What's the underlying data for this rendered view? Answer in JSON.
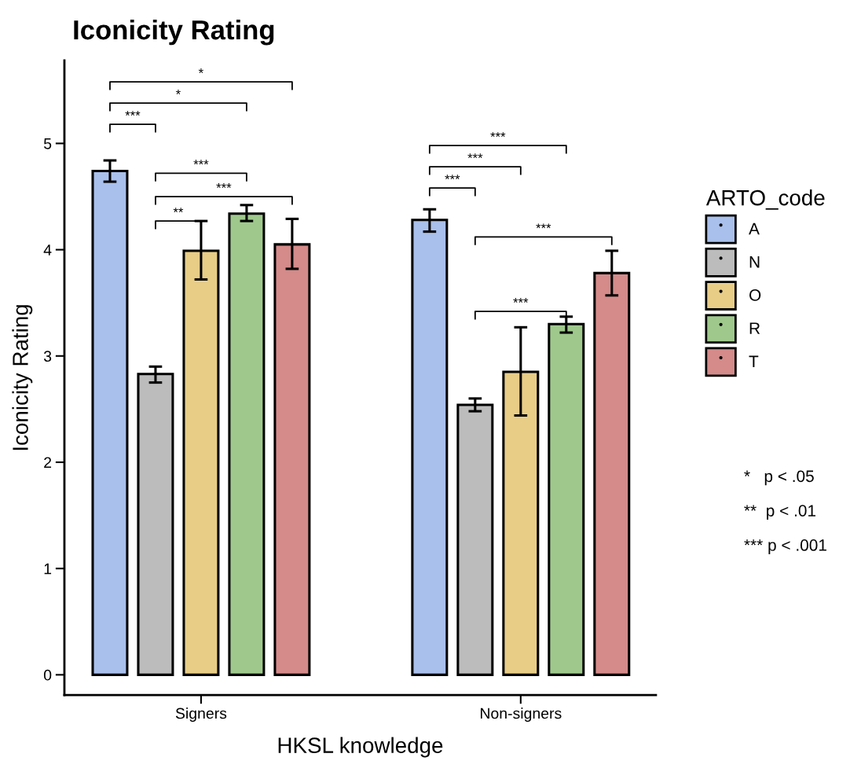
{
  "chart_data": {
    "type": "bar",
    "title": "Iconicity Rating",
    "xlabel": "HKSL knowledge",
    "ylabel": "Iconicity Rating",
    "legend_title": "ARTO_code",
    "categories": [
      "Signers",
      "Non-signers"
    ],
    "series": [
      {
        "name": "A",
        "color": "#a9c0ec",
        "values": [
          4.74,
          4.28
        ],
        "errors": [
          [
            4.64,
            4.84
          ],
          [
            4.17,
            4.38
          ]
        ]
      },
      {
        "name": "N",
        "color": "#bcbcbc",
        "values": [
          2.83,
          2.54
        ],
        "errors": [
          [
            2.75,
            2.9
          ],
          [
            2.48,
            2.6
          ]
        ]
      },
      {
        "name": "O",
        "color": "#e8cd87",
        "values": [
          3.99,
          2.85
        ],
        "errors": [
          [
            3.72,
            4.27
          ],
          [
            2.44,
            3.27
          ]
        ]
      },
      {
        "name": "R",
        "color": "#9fc98c",
        "values": [
          4.34,
          3.3
        ],
        "errors": [
          [
            4.27,
            4.42
          ],
          [
            3.22,
            3.37
          ]
        ]
      },
      {
        "name": "T",
        "color": "#d48b8a",
        "values": [
          4.05,
          3.78
        ],
        "errors": [
          [
            3.82,
            4.29
          ],
          [
            3.57,
            3.99
          ]
        ]
      }
    ],
    "ylim": [
      -0.19,
      5.78
    ],
    "yticks": [
      0,
      1,
      2,
      3,
      4,
      5
    ],
    "grid": false,
    "legend": "right",
    "annotations": [
      "***",
      "*",
      "*",
      "***",
      "***",
      "**",
      "***",
      "***",
      "***",
      "***",
      "***",
      "*   p < .05",
      "**  p < .01",
      "*** p < .001"
    ]
  }
}
